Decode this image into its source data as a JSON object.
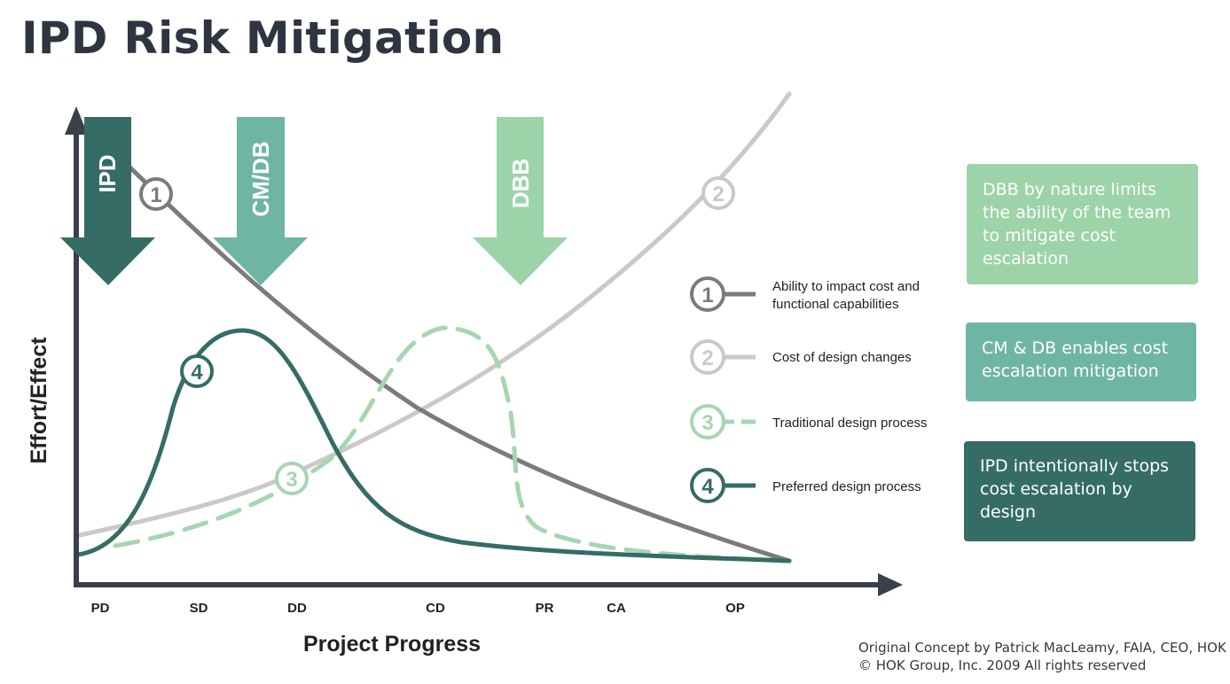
{
  "title": "IPD Risk Mitigation",
  "axes": {
    "y_label": "Effort/Effect",
    "x_label": "Project Progress",
    "phases": [
      "PD",
      "SD",
      "DD",
      "CD",
      "PR",
      "CA",
      "OP"
    ]
  },
  "arrows": {
    "ipd": "IPD",
    "cmdb": "CM/DB",
    "dbb": "DBB"
  },
  "curve_markers": [
    "1",
    "2",
    "3",
    "4"
  ],
  "legend": {
    "items": [
      {
        "number": "1",
        "lines": [
          "Ability to impact cost and",
          "functional capabilities"
        ]
      },
      {
        "number": "2",
        "lines": [
          "Cost of design changes"
        ]
      },
      {
        "number": "3",
        "lines": [
          "Traditional design process"
        ]
      },
      {
        "number": "4",
        "lines": [
          "Preferred design process"
        ]
      }
    ]
  },
  "boxes": {
    "dbb": "DBB by nature limits the ability of the team to mitigate cost escalation",
    "cmdb": "CM & DB enables cost escalation mitigation",
    "ipd": "IPD intentionally stops cost escalation by design"
  },
  "credits": {
    "line1": "Original Concept by Patrick MacLeamy, FAIA, CEO, HOK",
    "line2": "© HOK Group, Inc. 2009 All rights reserved"
  },
  "colors": {
    "curve1": "#7b7b7d",
    "curve2": "#c9c9c9",
    "curve3": "#a6d6b0",
    "curve4": "#356c66",
    "ipd_arrow": "#356c66",
    "cmdb_arrow": "#6fb5a4",
    "dbb_arrow": "#9dd3a8",
    "axis": "#3a3f48"
  }
}
